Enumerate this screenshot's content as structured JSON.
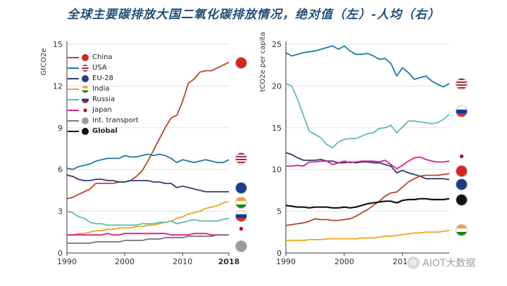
{
  "title": "全球主要碳排放大国二氧化碳排放情况，绝对值（左）-人均（右）",
  "watermark": "AIOT大数据",
  "legend": [
    {
      "name": "China",
      "color": "#b5472a",
      "marker": "china-flag-icon"
    },
    {
      "name": "USA",
      "color": "#1a7aa8",
      "marker": "usa-flag-icon"
    },
    {
      "name": "EU-28",
      "color": "#2c3b73",
      "marker": "eu-flag-icon"
    },
    {
      "name": "India",
      "color": "#f2a31b",
      "marker": "india-flag-icon"
    },
    {
      "name": "Russia",
      "color": "#5cbfa3",
      "marker": "russia-flag-icon"
    },
    {
      "name": "Japan",
      "color": "#d81b8c",
      "marker": "japan-flag-icon"
    },
    {
      "name": "Int. transport",
      "color": "#777777",
      "marker": "ship-icon"
    },
    {
      "name": "Global",
      "color": "#111111",
      "marker": "globe-icon"
    }
  ],
  "chart_data": [
    {
      "type": "line",
      "ylabel": "GtCO2e",
      "xlim": [
        1990,
        2018
      ],
      "ylim": [
        0,
        15
      ],
      "yticks": [
        0,
        3,
        6,
        9,
        12,
        15
      ],
      "xticks": [
        1990,
        2000,
        2010,
        2018
      ],
      "x": [
        1990,
        1991,
        1992,
        1993,
        1994,
        1995,
        1996,
        1997,
        1998,
        1999,
        2000,
        2001,
        2002,
        2003,
        2004,
        2005,
        2006,
        2007,
        2008,
        2009,
        2010,
        2011,
        2012,
        2013,
        2014,
        2015,
        2016,
        2017,
        2018
      ],
      "series": [
        {
          "name": "China",
          "values": [
            3.9,
            4.0,
            4.2,
            4.4,
            4.6,
            5.0,
            5.0,
            5.0,
            5.0,
            5.1,
            5.1,
            5.2,
            5.5,
            5.9,
            6.6,
            7.4,
            8.2,
            9.0,
            9.7,
            9.9,
            10.9,
            12.2,
            12.5,
            13.0,
            13.1,
            13.1,
            13.3,
            13.5,
            13.7
          ]
        },
        {
          "name": "USA",
          "values": [
            6.1,
            6.0,
            6.2,
            6.3,
            6.4,
            6.6,
            6.7,
            6.8,
            6.8,
            6.8,
            7.0,
            6.9,
            6.9,
            7.0,
            7.1,
            7.0,
            7.1,
            7.0,
            6.8,
            6.5,
            6.7,
            6.6,
            6.5,
            6.6,
            6.7,
            6.6,
            6.5,
            6.5,
            6.7
          ]
        },
        {
          "name": "EU-28",
          "values": [
            5.6,
            5.5,
            5.3,
            5.2,
            5.2,
            5.3,
            5.3,
            5.2,
            5.2,
            5.1,
            5.1,
            5.2,
            5.2,
            5.2,
            5.2,
            5.1,
            5.1,
            5.0,
            5.0,
            4.7,
            4.8,
            4.7,
            4.6,
            4.5,
            4.4,
            4.4,
            4.4,
            4.4,
            4.4
          ]
        },
        {
          "name": "India",
          "values": [
            1.3,
            1.3,
            1.4,
            1.4,
            1.5,
            1.6,
            1.6,
            1.7,
            1.7,
            1.8,
            1.8,
            1.8,
            1.9,
            1.9,
            2.0,
            2.0,
            2.1,
            2.2,
            2.3,
            2.5,
            2.6,
            2.8,
            2.9,
            3.0,
            3.2,
            3.3,
            3.4,
            3.6,
            3.7
          ]
        },
        {
          "name": "Russia",
          "values": [
            3.0,
            2.9,
            2.6,
            2.5,
            2.2,
            2.1,
            2.1,
            2.0,
            2.0,
            2.0,
            2.0,
            2.0,
            2.0,
            2.1,
            2.1,
            2.1,
            2.2,
            2.2,
            2.3,
            2.1,
            2.2,
            2.3,
            2.4,
            2.3,
            2.3,
            2.3,
            2.3,
            2.4,
            2.5
          ]
        },
        {
          "name": "Japan",
          "values": [
            1.3,
            1.3,
            1.3,
            1.3,
            1.3,
            1.3,
            1.3,
            1.4,
            1.3,
            1.3,
            1.4,
            1.4,
            1.4,
            1.4,
            1.4,
            1.4,
            1.4,
            1.4,
            1.3,
            1.3,
            1.3,
            1.3,
            1.4,
            1.4,
            1.4,
            1.3,
            1.3,
            1.3,
            1.3
          ]
        },
        {
          "name": "Int. transport",
          "values": [
            0.7,
            0.7,
            0.7,
            0.7,
            0.7,
            0.8,
            0.8,
            0.8,
            0.8,
            0.8,
            0.9,
            0.9,
            0.9,
            0.9,
            1.0,
            1.0,
            1.0,
            1.1,
            1.1,
            1.1,
            1.1,
            1.2,
            1.2,
            1.2,
            1.2,
            1.2,
            1.3,
            1.3,
            1.3
          ]
        }
      ]
    },
    {
      "type": "line",
      "ylabel": "tCO2e per capita",
      "xlim": [
        1990,
        2018
      ],
      "ylim": [
        0,
        25
      ],
      "yticks": [
        0,
        5,
        10,
        15,
        20,
        25
      ],
      "xticks": [
        1990,
        2000,
        2010
      ],
      "x": [
        1990,
        1991,
        1992,
        1993,
        1994,
        1995,
        1996,
        1997,
        1998,
        1999,
        2000,
        2001,
        2002,
        2003,
        2004,
        2005,
        2006,
        2007,
        2008,
        2009,
        2010,
        2011,
        2012,
        2013,
        2014,
        2015,
        2016,
        2017,
        2018
      ],
      "series": [
        {
          "name": "USA",
          "values": [
            24.0,
            23.6,
            23.8,
            24.0,
            24.1,
            24.2,
            24.4,
            24.6,
            24.8,
            24.4,
            24.8,
            24.2,
            23.8,
            23.8,
            23.9,
            23.6,
            23.2,
            23.3,
            22.7,
            21.2,
            22.2,
            21.6,
            20.8,
            21.0,
            21.2,
            20.6,
            20.2,
            19.9,
            20.3
          ]
        },
        {
          "name": "Russia",
          "values": [
            20.3,
            20.0,
            18.4,
            16.5,
            14.6,
            14.2,
            13.8,
            13.0,
            12.6,
            13.3,
            13.6,
            13.7,
            13.7,
            14.0,
            14.3,
            14.4,
            14.9,
            15.0,
            15.3,
            14.4,
            15.1,
            15.8,
            15.8,
            15.7,
            15.6,
            15.5,
            15.6,
            16.0,
            16.6
          ]
        },
        {
          "name": "EU-28",
          "values": [
            12.0,
            11.8,
            11.4,
            11.1,
            11.1,
            11.1,
            11.2,
            11.0,
            11.0,
            10.8,
            10.8,
            10.9,
            10.8,
            10.9,
            10.9,
            10.8,
            10.8,
            10.6,
            10.4,
            9.6,
            9.9,
            9.6,
            9.4,
            9.2,
            8.9,
            8.9,
            8.9,
            8.9,
            8.8
          ]
        },
        {
          "name": "Japan",
          "values": [
            10.4,
            10.4,
            10.5,
            10.4,
            10.9,
            10.9,
            11.0,
            11.0,
            10.6,
            10.8,
            11.0,
            10.8,
            10.9,
            11.0,
            11.0,
            11.0,
            10.9,
            11.1,
            10.6,
            10.1,
            10.5,
            11.0,
            11.4,
            11.5,
            11.2,
            11.0,
            10.9,
            10.9,
            11.0
          ]
        },
        {
          "name": "China",
          "values": [
            3.3,
            3.4,
            3.5,
            3.6,
            3.8,
            4.1,
            4.0,
            4.0,
            3.9,
            3.9,
            4.0,
            4.1,
            4.4,
            4.8,
            5.2,
            5.7,
            6.2,
            6.8,
            7.2,
            7.3,
            7.9,
            8.5,
            8.9,
            9.2,
            9.3,
            9.3,
            9.3,
            9.4,
            9.5
          ]
        },
        {
          "name": "Global",
          "values": [
            5.7,
            5.6,
            5.5,
            5.5,
            5.4,
            5.5,
            5.5,
            5.5,
            5.4,
            5.4,
            5.5,
            5.4,
            5.5,
            5.7,
            5.9,
            6.0,
            6.1,
            6.2,
            6.2,
            6.0,
            6.3,
            6.4,
            6.4,
            6.5,
            6.5,
            6.4,
            6.4,
            6.4,
            6.5
          ]
        },
        {
          "name": "India",
          "values": [
            1.5,
            1.5,
            1.5,
            1.5,
            1.6,
            1.6,
            1.6,
            1.7,
            1.7,
            1.7,
            1.7,
            1.7,
            1.7,
            1.8,
            1.8,
            1.8,
            1.9,
            2.0,
            2.0,
            2.1,
            2.2,
            2.3,
            2.4,
            2.4,
            2.5,
            2.5,
            2.5,
            2.6,
            2.7
          ]
        }
      ]
    }
  ]
}
